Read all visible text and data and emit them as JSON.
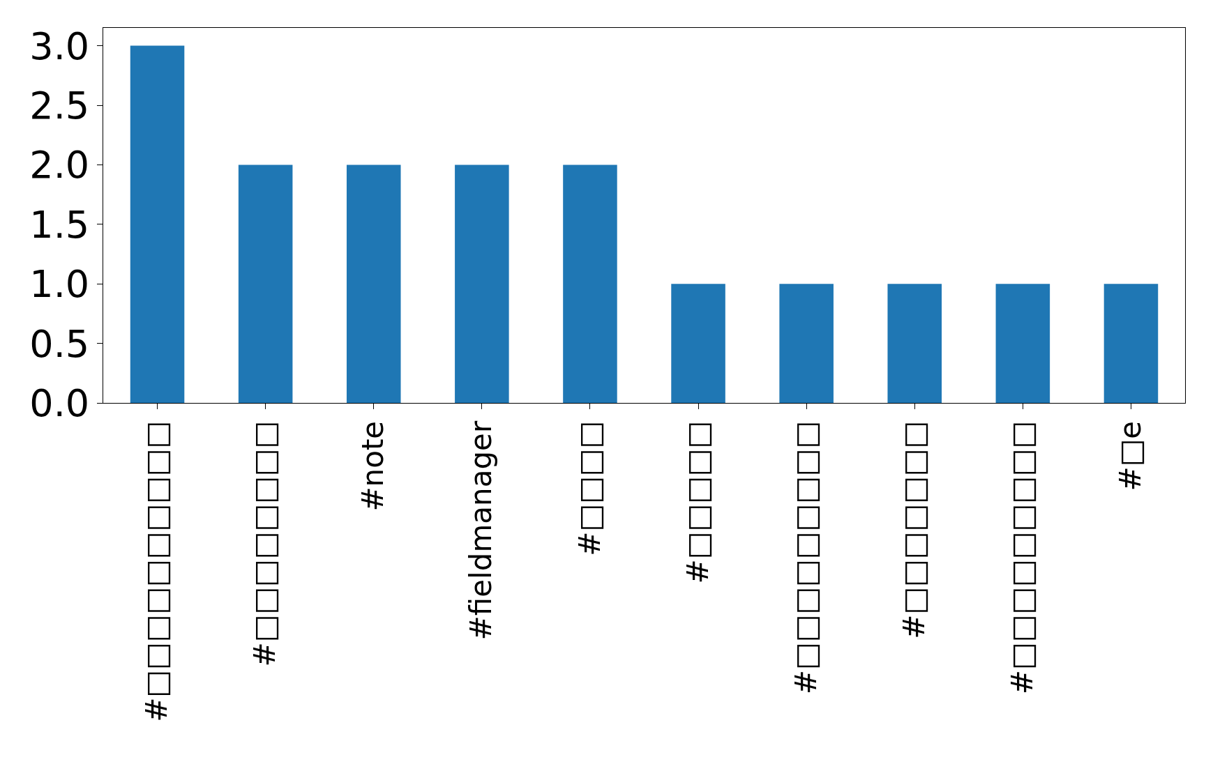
{
  "chart_data": {
    "type": "bar",
    "categories": [
      "#□□□□□□□□□□",
      "#□□□□□□□□",
      "#note",
      "#fieldmanager",
      "#□□□□",
      "#□□□□□",
      "#□□□□□□□□□",
      "#□□□□□□□",
      "#□□□□□□□□□",
      "#□e"
    ],
    "values": [
      3,
      2,
      2,
      2,
      2,
      1,
      1,
      1,
      1,
      1
    ],
    "color": "#1f77b4",
    "ylim": [
      0,
      3.15
    ],
    "yticks": [
      {
        "value": 0,
        "label": "0.0"
      },
      {
        "value": 0.5,
        "label": "0.5"
      },
      {
        "value": 1,
        "label": "1.0"
      },
      {
        "value": 1.5,
        "label": "1.5"
      },
      {
        "value": 2,
        "label": "2.0"
      },
      {
        "value": 2.5,
        "label": "2.5"
      },
      {
        "value": 3,
        "label": "3.0"
      }
    ],
    "grid": false
  }
}
